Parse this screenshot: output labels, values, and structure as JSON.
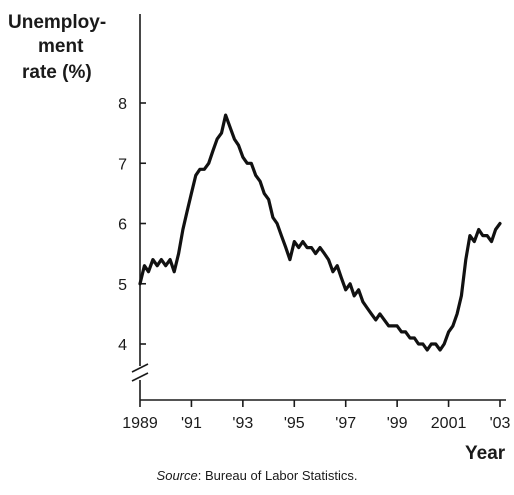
{
  "chart_data": {
    "type": "line",
    "ylabel_lines": [
      "Unemploy-",
      "ment",
      "rate (%)"
    ],
    "xlabel": "Year",
    "ylim": [
      3.3,
      8.5
    ],
    "xlim": [
      1989,
      2003.2
    ],
    "y_axis_break": true,
    "grid": false,
    "y_ticks": [
      {
        "value": 4,
        "label": "4"
      },
      {
        "value": 5,
        "label": "5"
      },
      {
        "value": 6,
        "label": "6"
      },
      {
        "value": 7,
        "label": "7"
      },
      {
        "value": 8,
        "label": "8"
      }
    ],
    "x_ticks": [
      {
        "value": 1989,
        "label": "1989"
      },
      {
        "value": 1991,
        "label": "'91"
      },
      {
        "value": 1993,
        "label": "'93"
      },
      {
        "value": 1995,
        "label": "'95"
      },
      {
        "value": 1997,
        "label": "'97"
      },
      {
        "value": 1999,
        "label": "'99"
      },
      {
        "value": 2001,
        "label": "2001"
      },
      {
        "value": 2003,
        "label": "'03"
      }
    ],
    "series": [
      {
        "color": "#111111",
        "x": [
          1989.0,
          1989.17,
          1989.33,
          1989.5,
          1989.67,
          1989.83,
          1990.0,
          1990.17,
          1990.33,
          1990.5,
          1990.67,
          1990.83,
          1991.0,
          1991.17,
          1991.33,
          1991.5,
          1991.67,
          1991.83,
          1992.0,
          1992.17,
          1992.33,
          1992.5,
          1992.67,
          1992.83,
          1993.0,
          1993.17,
          1993.33,
          1993.5,
          1993.67,
          1993.83,
          1994.0,
          1994.17,
          1994.33,
          1994.5,
          1994.67,
          1994.83,
          1995.0,
          1995.17,
          1995.33,
          1995.5,
          1995.67,
          1995.83,
          1996.0,
          1996.17,
          1996.33,
          1996.5,
          1996.67,
          1996.83,
          1997.0,
          1997.17,
          1997.33,
          1997.5,
          1997.67,
          1997.83,
          1998.0,
          1998.17,
          1998.33,
          1998.5,
          1998.67,
          1998.83,
          1999.0,
          1999.17,
          1999.33,
          1999.5,
          1999.67,
          1999.83,
          2000.0,
          2000.17,
          2000.33,
          2000.5,
          2000.67,
          2000.83,
          2001.0,
          2001.17,
          2001.33,
          2001.5,
          2001.67,
          2001.83,
          2002.0,
          2002.17,
          2002.33,
          2002.5,
          2002.67,
          2002.83,
          2003.0
        ],
        "y": [
          5.0,
          5.3,
          5.2,
          5.4,
          5.3,
          5.4,
          5.3,
          5.4,
          5.2,
          5.5,
          5.9,
          6.2,
          6.5,
          6.8,
          6.9,
          6.9,
          7.0,
          7.2,
          7.4,
          7.5,
          7.8,
          7.6,
          7.4,
          7.3,
          7.1,
          7.0,
          7.0,
          6.8,
          6.7,
          6.5,
          6.4,
          6.1,
          6.0,
          5.8,
          5.6,
          5.4,
          5.7,
          5.6,
          5.7,
          5.6,
          5.6,
          5.5,
          5.6,
          5.5,
          5.4,
          5.2,
          5.3,
          5.1,
          4.9,
          5.0,
          4.8,
          4.9,
          4.7,
          4.6,
          4.5,
          4.4,
          4.5,
          4.4,
          4.3,
          4.3,
          4.3,
          4.2,
          4.2,
          4.1,
          4.1,
          4.0,
          4.0,
          3.9,
          4.0,
          4.0,
          3.9,
          4.0,
          4.2,
          4.3,
          4.5,
          4.8,
          5.4,
          5.8,
          5.7,
          5.9,
          5.8,
          5.8,
          5.7,
          5.9,
          6.0
        ]
      }
    ]
  },
  "source": {
    "prefix": "Source",
    "text": ": Bureau of Labor Statistics."
  }
}
